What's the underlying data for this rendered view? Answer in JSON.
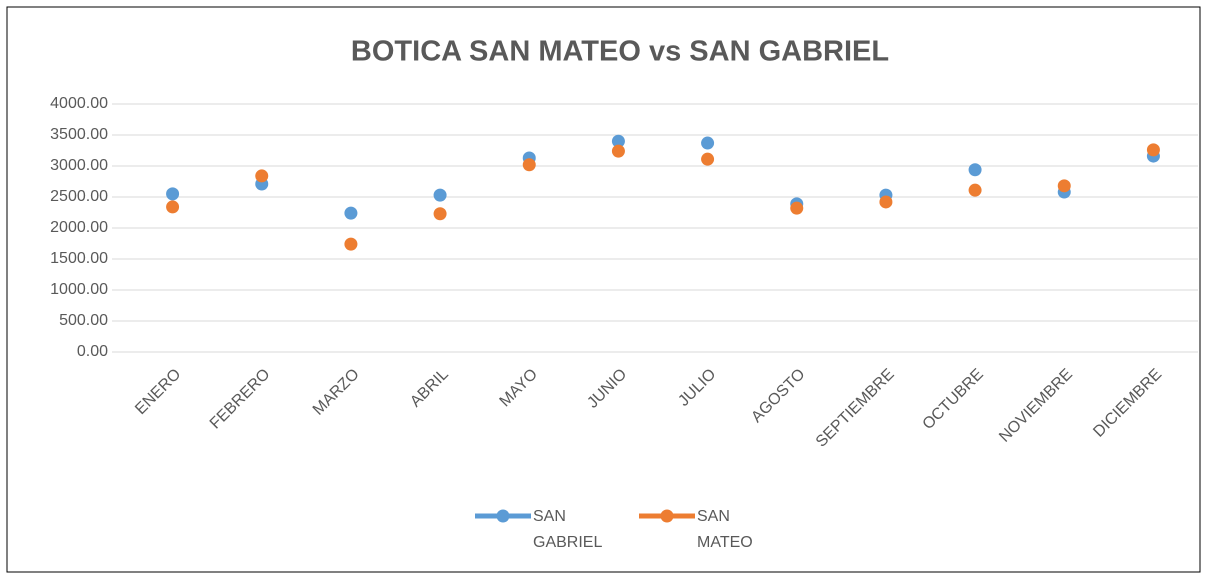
{
  "chart_data": {
    "type": "line",
    "title": "BOTICA SAN MATEO vs SAN GABRIEL",
    "categories": [
      "ENERO",
      "FEBRERO",
      "MARZO",
      "ABRIL",
      "MAYO",
      "JUNIO",
      "JULIO",
      "AGOSTO",
      "SEPTIEMBRE",
      "OCTUBRE",
      "NOVIEMBRE",
      "DICIEMBRE"
    ],
    "series": [
      {
        "name": "SAN GABRIEL",
        "color": "#5b9bd5",
        "values": [
          2550,
          2710,
          2240,
          2530,
          3130,
          3400,
          3370,
          2390,
          2530,
          2940,
          2580,
          3160
        ]
      },
      {
        "name": "SAN MATEO",
        "color": "#ed7d31",
        "values": [
          2340,
          2840,
          1740,
          2230,
          3020,
          3240,
          3110,
          2320,
          2420,
          2610,
          2680,
          3260
        ]
      }
    ],
    "ylim": [
      0,
      4000
    ],
    "yticks": [
      {
        "value": 0,
        "label": "0.00"
      },
      {
        "value": 500,
        "label": "500.00"
      },
      {
        "value": 1000,
        "label": "1000.00"
      },
      {
        "value": 1500,
        "label": "1500.00"
      },
      {
        "value": 2000,
        "label": "2000.00"
      },
      {
        "value": 2500,
        "label": "2500.00"
      },
      {
        "value": 3000,
        "label": "3000.00"
      },
      {
        "value": 3500,
        "label": "3500.00"
      },
      {
        "value": 4000,
        "label": "4000.00"
      }
    ],
    "grid": true,
    "legend": "bottom"
  }
}
